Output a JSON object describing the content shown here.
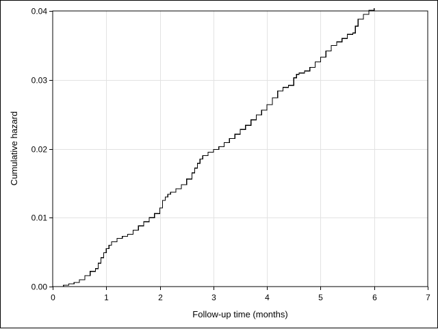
{
  "chart_data": {
    "type": "line",
    "step": true,
    "title": "",
    "xlabel": "Follow-up time (months)",
    "ylabel": "Cumulative hazard",
    "xlim": [
      0,
      7
    ],
    "ylim": [
      0,
      0.04
    ],
    "x_ticks": [
      0,
      1,
      2,
      3,
      4,
      5,
      6,
      7
    ],
    "x_tick_labels": [
      "0",
      "1",
      "2",
      "3",
      "4",
      "5",
      "6",
      "7"
    ],
    "y_ticks": [
      0,
      0.01,
      0.02,
      0.03,
      0.04
    ],
    "y_tick_labels": [
      "0.00",
      "0.01",
      "0.02",
      "0.03",
      "0.04"
    ],
    "grid": true,
    "series": [
      {
        "name": "Cumulative hazard",
        "color": "#000000",
        "x": [
          0.0,
          0.2,
          0.3,
          0.4,
          0.5,
          0.6,
          0.7,
          0.8,
          0.85,
          0.9,
          0.95,
          1.0,
          1.05,
          1.1,
          1.2,
          1.3,
          1.4,
          1.5,
          1.6,
          1.7,
          1.8,
          1.9,
          2.0,
          2.05,
          2.1,
          2.15,
          2.2,
          2.3,
          2.4,
          2.5,
          2.6,
          2.65,
          2.7,
          2.75,
          2.8,
          2.9,
          3.0,
          3.1,
          3.2,
          3.3,
          3.4,
          3.5,
          3.6,
          3.7,
          3.8,
          3.9,
          4.0,
          4.1,
          4.2,
          4.3,
          4.4,
          4.5,
          4.55,
          4.6,
          4.7,
          4.8,
          4.9,
          5.0,
          5.1,
          5.2,
          5.3,
          5.4,
          5.5,
          5.6,
          5.65,
          5.7,
          5.8,
          5.9,
          6.0
        ],
        "y": [
          0.0,
          0.0002,
          0.0004,
          0.0006,
          0.001,
          0.0016,
          0.0022,
          0.0026,
          0.0034,
          0.0042,
          0.0049,
          0.0055,
          0.006,
          0.0065,
          0.007,
          0.0073,
          0.0076,
          0.0082,
          0.0088,
          0.0094,
          0.01,
          0.0106,
          0.0114,
          0.0125,
          0.013,
          0.0134,
          0.0137,
          0.0142,
          0.0148,
          0.0156,
          0.0165,
          0.0172,
          0.0179,
          0.0185,
          0.019,
          0.0195,
          0.0199,
          0.0203,
          0.0209,
          0.0215,
          0.0221,
          0.0228,
          0.0234,
          0.0242,
          0.0249,
          0.0256,
          0.0264,
          0.0274,
          0.0284,
          0.0289,
          0.0292,
          0.0303,
          0.0308,
          0.031,
          0.0313,
          0.0318,
          0.0326,
          0.0333,
          0.0342,
          0.035,
          0.0355,
          0.036,
          0.0366,
          0.0368,
          0.0378,
          0.0388,
          0.0395,
          0.0401,
          0.0404
        ]
      }
    ]
  }
}
